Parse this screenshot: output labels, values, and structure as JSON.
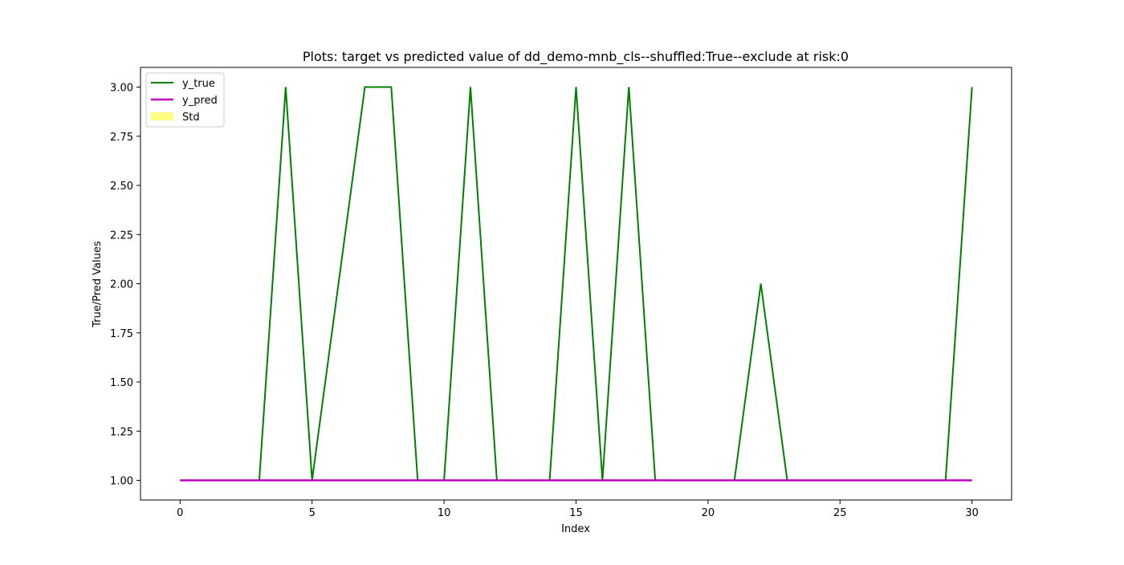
{
  "chart_data": {
    "type": "line",
    "title": "Plots: target vs predicted value of dd_demo-mnb_cls--shuffled:True--exclude at risk:0",
    "xlabel": "Index",
    "ylabel": "True/Pred Values",
    "xlim": [
      -1.5,
      31.5
    ],
    "ylim": [
      0.9,
      3.1
    ],
    "x_ticks": [
      0,
      5,
      10,
      15,
      20,
      25,
      30
    ],
    "x_tick_labels": [
      "0",
      "5",
      "10",
      "15",
      "20",
      "25",
      "30"
    ],
    "y_ticks": [
      1.0,
      1.25,
      1.5,
      1.75,
      2.0,
      2.25,
      2.5,
      2.75,
      3.0
    ],
    "y_tick_labels": [
      "1.00",
      "1.25",
      "1.50",
      "1.75",
      "2.00",
      "2.25",
      "2.50",
      "2.75",
      "3.00"
    ],
    "grid": false,
    "legend_position": "top-left",
    "x": [
      0,
      1,
      2,
      3,
      4,
      5,
      6,
      7,
      8,
      9,
      10,
      11,
      12,
      13,
      14,
      15,
      16,
      17,
      18,
      19,
      20,
      21,
      22,
      23,
      24,
      25,
      26,
      27,
      28,
      29,
      30
    ],
    "series": [
      {
        "name": "y_true",
        "color": "#008000",
        "values": [
          1,
          1,
          1,
          1,
          3,
          1,
          2,
          3,
          3,
          1,
          1,
          3,
          1,
          1,
          1,
          3,
          1,
          3,
          1,
          1,
          1,
          1,
          2,
          1,
          1,
          1,
          1,
          1,
          1,
          1,
          3
        ]
      },
      {
        "name": "y_pred",
        "color": "#bf00bf",
        "values": [
          1,
          1,
          1,
          1,
          1,
          1,
          1,
          1,
          1,
          1,
          1,
          1,
          1,
          1,
          1,
          1,
          1,
          1,
          1,
          1,
          1,
          1,
          1,
          1,
          1,
          1,
          1,
          1,
          1,
          1,
          1
        ]
      }
    ],
    "std_band": {
      "name": "Std",
      "color": "#ffff80",
      "values": [
        0,
        0,
        0,
        0,
        0,
        0,
        0,
        0,
        0,
        0,
        0,
        0,
        0,
        0,
        0,
        0,
        0,
        0,
        0,
        0,
        0,
        0,
        0,
        0,
        0,
        0,
        0,
        0,
        0,
        0,
        0
      ]
    }
  }
}
